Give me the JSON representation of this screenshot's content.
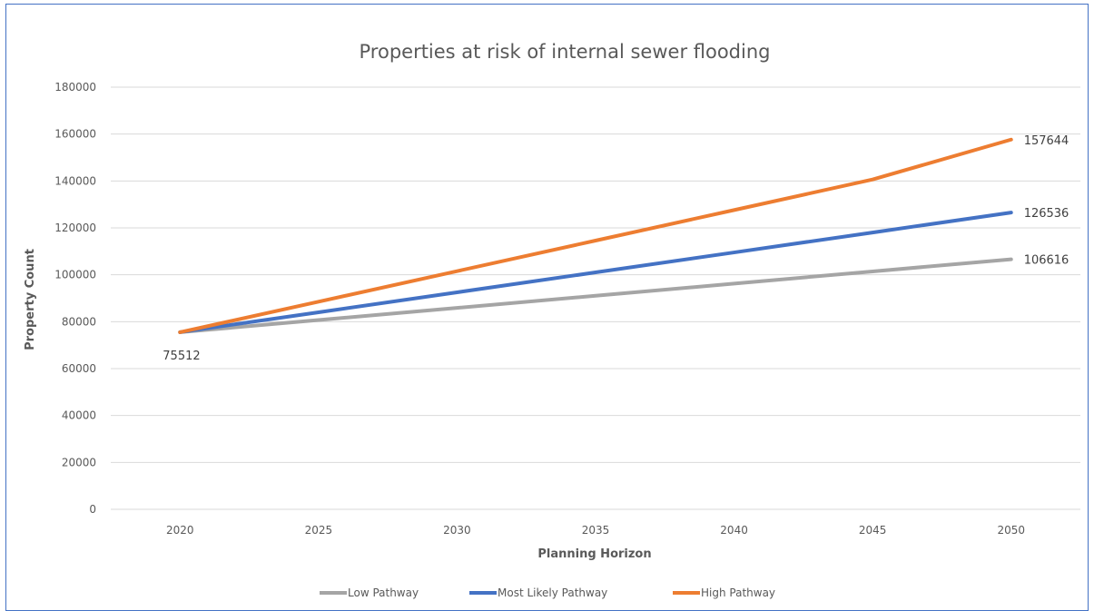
{
  "chart_data": {
    "type": "line",
    "title": "Properties at risk of internal sewer flooding",
    "xlabel": "Planning Horizon",
    "ylabel": "Property Count",
    "x": [
      "2020",
      "2025",
      "2030",
      "2035",
      "2040",
      "2045",
      "2050"
    ],
    "ylim": [
      0,
      180000
    ],
    "yticks": [
      0,
      20000,
      40000,
      60000,
      80000,
      100000,
      120000,
      140000,
      160000,
      180000
    ],
    "grid": true,
    "legend_position": "bottom",
    "series": [
      {
        "name": "Low Pathway",
        "color": "#a5a5a5",
        "values": [
          75512,
          80696,
          85880,
          91064,
          96248,
          101432,
          106616
        ]
      },
      {
        "name": "Most Likely Pathway",
        "color": "#4472c4",
        "values": [
          75512,
          84016,
          92520,
          101024,
          109528,
          118032,
          126536
        ]
      },
      {
        "name": "High Pathway",
        "color": "#ed7d31",
        "values": [
          75512,
          88534,
          101556,
          114578,
          127600,
          140622,
          157644
        ]
      }
    ],
    "data_labels": [
      {
        "text": "75512",
        "series": 0,
        "index": 0
      },
      {
        "text": "157644",
        "series": 2,
        "index": 6
      },
      {
        "text": "126536",
        "series": 1,
        "index": 6
      },
      {
        "text": "106616",
        "series": 0,
        "index": 6
      }
    ]
  }
}
